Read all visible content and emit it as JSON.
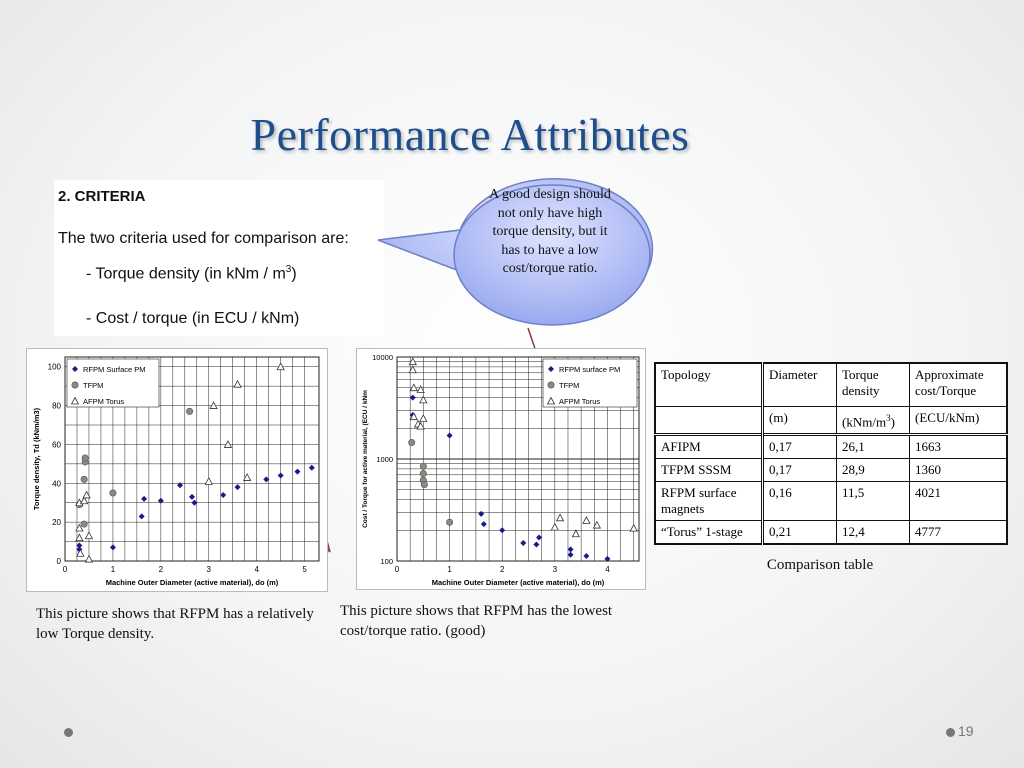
{
  "slide": {
    "title": "Performance Attributes",
    "page_number": "19"
  },
  "criteria": {
    "heading": "2. CRITERIA",
    "intro": "The two criteria used for comparison are:",
    "items": [
      "- Torque density (in kNm / m",
      "- Cost / torque (in ECU / kNm)"
    ],
    "sup": "3",
    "item1_end": ")"
  },
  "callout": {
    "text": "A good design should not only have high torque density, but it has to have a low cost/torque ratio."
  },
  "captions": {
    "left": "This picture shows that RFPM has a relatively low Torque density.",
    "middle": "This picture shows that RFPM has the lowest cost/torque ratio. (good)",
    "table": "Comparison table"
  },
  "chart_data": [
    {
      "type": "scatter",
      "xlabel": "Machine Outer Diameter (active material), do (m)",
      "ylabel": "Torque density, Td (kNm/m3)",
      "xlim": [
        0,
        5.3
      ],
      "ylim": [
        0,
        105
      ],
      "x_ticks": [
        "0",
        "1",
        "2",
        "3",
        "4",
        "5"
      ],
      "y_ticks": [
        "0",
        "20",
        "40",
        "60",
        "80",
        "100"
      ],
      "legend_position": "top-left",
      "series": [
        {
          "name": "RFPM Surface PM",
          "marker": "diamond",
          "points": [
            [
              0.3,
              8
            ],
            [
              0.3,
              6
            ],
            [
              1.0,
              7
            ],
            [
              1.6,
              23
            ],
            [
              1.65,
              32
            ],
            [
              2.0,
              31
            ],
            [
              2.4,
              39
            ],
            [
              2.65,
              33
            ],
            [
              2.7,
              30
            ],
            [
              3.3,
              34
            ],
            [
              3.6,
              38
            ],
            [
              4.2,
              42
            ],
            [
              4.5,
              44
            ],
            [
              4.85,
              46
            ],
            [
              5.15,
              48
            ]
          ]
        },
        {
          "name": "TFPM",
          "marker": "circle",
          "points": [
            [
              0.3,
              29
            ],
            [
              0.4,
              19
            ],
            [
              0.4,
              42
            ],
            [
              0.42,
              51
            ],
            [
              0.42,
              53
            ],
            [
              1.0,
              35
            ],
            [
              2.6,
              77
            ]
          ]
        },
        {
          "name": "AFPM Torus",
          "marker": "triangle",
          "points": [
            [
              0.3,
              30
            ],
            [
              0.3,
              17
            ],
            [
              0.32,
              4
            ],
            [
              0.3,
              12
            ],
            [
              0.4,
              31
            ],
            [
              0.45,
              34
            ],
            [
              0.5,
              13
            ],
            [
              0.5,
              1
            ],
            [
              3.0,
              41
            ],
            [
              3.1,
              80
            ],
            [
              3.4,
              60
            ],
            [
              3.6,
              91
            ],
            [
              3.8,
              43
            ],
            [
              4.5,
              100
            ]
          ]
        }
      ]
    },
    {
      "type": "scatter",
      "xlabel": "Machine Outer Diameter (active material), do (m)",
      "ylabel": "Cost / Torque for active material, (ECU / kNm",
      "xscale": "linear",
      "yscale": "log",
      "xlim": [
        0,
        4.6
      ],
      "ylim": [
        100,
        10000
      ],
      "x_ticks": [
        "0",
        "1",
        "2",
        "3",
        "4"
      ],
      "y_ticks": [
        "100",
        "1000",
        "10000"
      ],
      "legend_position": "top-right",
      "series": [
        {
          "name": "RFPM surface PM",
          "marker": "diamond",
          "points": [
            [
              0.3,
              4000
            ],
            [
              0.3,
              2700
            ],
            [
              1.0,
              1700
            ],
            [
              1.6,
              290
            ],
            [
              1.65,
              230
            ],
            [
              2.0,
              200
            ],
            [
              2.4,
              150
            ],
            [
              2.65,
              145
            ],
            [
              2.7,
              170
            ],
            [
              3.3,
              130
            ],
            [
              3.3,
              115
            ],
            [
              3.6,
              112
            ],
            [
              4.0,
              105
            ]
          ]
        },
        {
          "name": "TFPM",
          "marker": "circle",
          "points": [
            [
              0.28,
              1450
            ],
            [
              0.5,
              850
            ],
            [
              0.5,
              720
            ],
            [
              0.5,
              620
            ],
            [
              0.52,
              560
            ],
            [
              1.0,
              240
            ]
          ]
        },
        {
          "name": "AFPM Torus",
          "marker": "triangle",
          "points": [
            [
              0.3,
              9000
            ],
            [
              0.3,
              7500
            ],
            [
              0.32,
              5000
            ],
            [
              0.32,
              2600
            ],
            [
              0.4,
              2200
            ],
            [
              0.45,
              2100
            ],
            [
              0.45,
              4800
            ],
            [
              0.5,
              2500
            ],
            [
              0.5,
              3800
            ],
            [
              3.0,
              215
            ],
            [
              3.1,
              265
            ],
            [
              3.4,
              185
            ],
            [
              3.6,
              250
            ],
            [
              3.8,
              225
            ],
            [
              4.5,
              210
            ]
          ]
        }
      ]
    },
    {
      "type": "table",
      "columns": [
        "Topology",
        "Diameter",
        "Torque density",
        "Approximate cost/Torque"
      ],
      "units": [
        "",
        "(m)",
        "(kNm/m",
        "(ECU/kNm)"
      ],
      "unit_sup": "3",
      "unit_end": ")",
      "rows": [
        [
          "AFIPM",
          "0,17",
          "26,1",
          "1663"
        ],
        [
          "TFPM SSSM",
          "0,17",
          "28,9",
          "1360"
        ],
        [
          "RFPM surface magnets",
          "0,16",
          "11,5",
          "4021"
        ],
        [
          "“Torus” 1-stage",
          "0,21",
          "12,4",
          "4777"
        ]
      ]
    }
  ]
}
